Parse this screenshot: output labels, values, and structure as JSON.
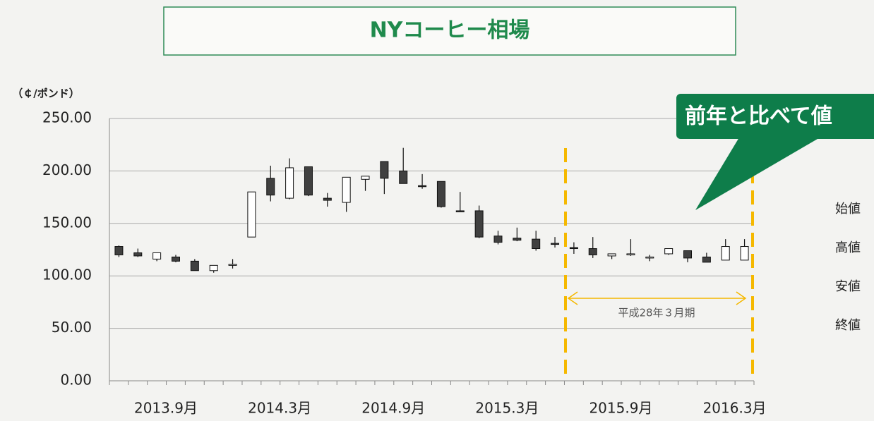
{
  "chart_data": {
    "type": "candlestick",
    "title": "NYコーヒー相場",
    "y_label": "（￠/ポンド）",
    "categories": [
      null,
      null,
      null,
      "2013.9月",
      null,
      null,
      null,
      null,
      null,
      "2014.3月",
      null,
      null,
      null,
      null,
      null,
      "2014.9月",
      null,
      null,
      null,
      null,
      null,
      "2015.3月",
      null,
      null,
      null,
      null,
      null,
      "2015.9月",
      null,
      null,
      null,
      null,
      null,
      "2016.3月"
    ],
    "open": [
      128,
      122,
      116,
      118,
      114,
      105,
      110,
      137,
      193,
      174,
      204,
      174,
      170,
      192,
      209,
      200,
      186,
      190,
      162,
      162,
      138,
      136,
      135,
      131,
      127,
      126,
      119,
      121,
      118,
      121,
      124,
      118,
      115,
      115
    ],
    "high": [
      129,
      126,
      122,
      120,
      116,
      110,
      116,
      180,
      205,
      212,
      204,
      179,
      194,
      195,
      209,
      222,
      197,
      190,
      180,
      167,
      143,
      146,
      143,
      137,
      132,
      137,
      121,
      135,
      120,
      126,
      124,
      122,
      135,
      135
    ],
    "low": [
      118,
      118,
      114,
      113,
      105,
      103,
      107,
      137,
      171,
      173,
      176,
      166,
      161,
      181,
      178,
      188,
      183,
      165,
      161,
      136,
      130,
      133,
      124,
      127,
      121,
      117,
      116,
      119,
      114,
      120,
      113,
      113,
      115,
      115
    ],
    "close": [
      120,
      119,
      122,
      114,
      105,
      110,
      111,
      180,
      177,
      203,
      177,
      172,
      194,
      195,
      193,
      188,
      185,
      166,
      161,
      137,
      132,
      134,
      126,
      130,
      126,
      120,
      121,
      121,
      118,
      126,
      117,
      113,
      128,
      128
    ],
    "up_color": "#ffffff",
    "down_color": "#404040",
    "ylim": [
      0,
      250
    ],
    "yticks": [
      {
        "value": 0,
        "label": "0.00"
      },
      {
        "value": 50,
        "label": "50.00"
      },
      {
        "value": 100,
        "label": "100.00"
      },
      {
        "value": 150,
        "label": "150.00"
      },
      {
        "value": 200,
        "label": "200.00"
      },
      {
        "value": 250,
        "label": "250.00"
      }
    ],
    "grid": true,
    "period_label": "平成28年３月期",
    "callout": "前年と比べて値",
    "legend_labels": [
      "始値",
      "高値",
      "安値",
      "終値"
    ]
  }
}
